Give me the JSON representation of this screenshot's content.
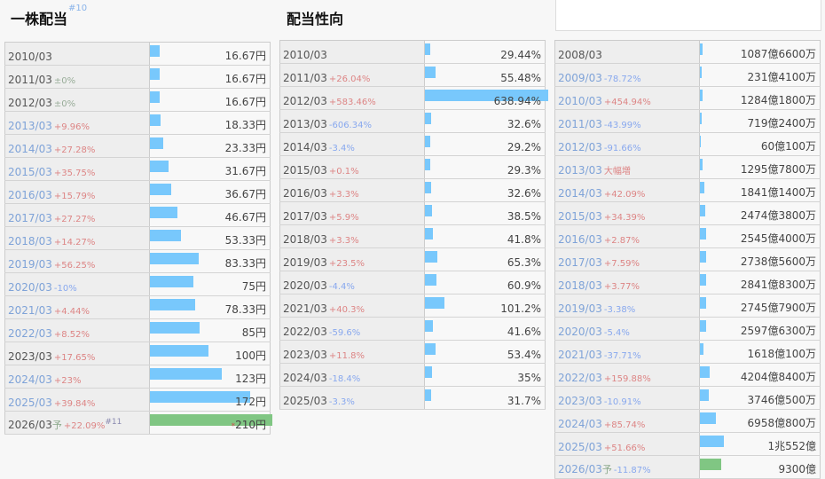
{
  "sections": [
    {
      "title": "一株配当",
      "title_note": "#10",
      "unit_scale_max": 210,
      "rows": [
        {
          "year": "2010/03",
          "change": "",
          "value": "16.67円",
          "num": 16.67
        },
        {
          "year": "2011/03",
          "change": "±0%",
          "value": "16.67円",
          "num": 16.67
        },
        {
          "year": "2012/03",
          "change": "±0%",
          "value": "16.67円",
          "num": 16.67
        },
        {
          "year": "2013/03",
          "change": "+9.96%",
          "value": "18.33円",
          "num": 18.33,
          "link": true
        },
        {
          "year": "2014/03",
          "change": "+27.28%",
          "value": "23.33円",
          "num": 23.33,
          "link": true
        },
        {
          "year": "2015/03",
          "change": "+35.75%",
          "value": "31.67円",
          "num": 31.67,
          "link": true
        },
        {
          "year": "2016/03",
          "change": "+15.79%",
          "value": "36.67円",
          "num": 36.67,
          "link": true
        },
        {
          "year": "2017/03",
          "change": "+27.27%",
          "value": "46.67円",
          "num": 46.67,
          "link": true
        },
        {
          "year": "2018/03",
          "change": "+14.27%",
          "value": "53.33円",
          "num": 53.33,
          "link": true
        },
        {
          "year": "2019/03",
          "change": "+56.25%",
          "value": "83.33円",
          "num": 83.33,
          "link": true
        },
        {
          "year": "2020/03",
          "change": "-10%",
          "value": "75円",
          "num": 75,
          "link": true
        },
        {
          "year": "2021/03",
          "change": "+4.44%",
          "value": "78.33円",
          "num": 78.33,
          "link": true
        },
        {
          "year": "2022/03",
          "change": "+8.52%",
          "value": "85円",
          "num": 85,
          "link": true
        },
        {
          "year": "2023/03",
          "change": "+17.65%",
          "value": "100円",
          "num": 100
        },
        {
          "year": "2024/03",
          "change": "+23%",
          "value": "123円",
          "num": 123,
          "link": true
        },
        {
          "year": "2025/03",
          "change": "+39.84%",
          "value": "172円",
          "num": 172,
          "link": true
        },
        {
          "year": "2026/03",
          "forecast": "予",
          "change": "+22.09%",
          "note": "#11",
          "star": "*",
          "value": "210円",
          "num": 210
        }
      ]
    },
    {
      "title": "配当性向",
      "unit_scale_max": 638.94,
      "rows": [
        {
          "year": "2010/03",
          "change": "",
          "value": "29.44%",
          "num": 29.44
        },
        {
          "year": "2011/03",
          "change": "+26.04%",
          "value": "55.48%",
          "num": 55.48
        },
        {
          "year": "2012/03",
          "change": "+583.46%",
          "value": "638.94%",
          "num": 638.94
        },
        {
          "year": "2013/03",
          "change": "-606.34%",
          "value": "32.6%",
          "num": 32.6
        },
        {
          "year": "2014/03",
          "change": "-3.4%",
          "value": "29.2%",
          "num": 29.2
        },
        {
          "year": "2015/03",
          "change": "+0.1%",
          "value": "29.3%",
          "num": 29.3
        },
        {
          "year": "2016/03",
          "change": "+3.3%",
          "value": "32.6%",
          "num": 32.6
        },
        {
          "year": "2017/03",
          "change": "+5.9%",
          "value": "38.5%",
          "num": 38.5
        },
        {
          "year": "2018/03",
          "change": "+3.3%",
          "value": "41.8%",
          "num": 41.8
        },
        {
          "year": "2019/03",
          "change": "+23.5%",
          "value": "65.3%",
          "num": 65.3
        },
        {
          "year": "2020/03",
          "change": "-4.4%",
          "value": "60.9%",
          "num": 60.9
        },
        {
          "year": "2021/03",
          "change": "+40.3%",
          "value": "101.2%",
          "num": 101.2
        },
        {
          "year": "2022/03",
          "change": "-59.6%",
          "value": "41.6%",
          "num": 41.6
        },
        {
          "year": "2023/03",
          "change": "+11.8%",
          "value": "53.4%",
          "num": 53.4
        },
        {
          "year": "2024/03",
          "change": "-18.4%",
          "value": "35%",
          "num": 35
        },
        {
          "year": "2025/03",
          "change": "-3.3%",
          "value": "31.7%",
          "num": 31.7
        }
      ]
    },
    {
      "title": "",
      "unit_scale_max": 54000,
      "rows": [
        {
          "year": "2008/03",
          "change": "",
          "value": "1087億6600万",
          "num": 1087.66
        },
        {
          "year": "2009/03",
          "change": "-78.72%",
          "value": "231億4100万",
          "num": 231.41,
          "link": true
        },
        {
          "year": "2010/03",
          "change": "+454.94%",
          "value": "1284億1800万",
          "num": 1284.18,
          "link": true
        },
        {
          "year": "2011/03",
          "change": "-43.99%",
          "value": "719億2400万",
          "num": 719.24,
          "link": true
        },
        {
          "year": "2012/03",
          "change": "-91.66%",
          "value": "60億100万",
          "num": 60.01,
          "link": true
        },
        {
          "year": "2013/03",
          "change": "大幅増",
          "value": "1295億7800万",
          "num": 1295.78,
          "link": true
        },
        {
          "year": "2014/03",
          "change": "+42.09%",
          "value": "1841億1400万",
          "num": 1841.14,
          "link": true
        },
        {
          "year": "2015/03",
          "change": "+34.39%",
          "value": "2474億3800万",
          "num": 2474.38,
          "link": true
        },
        {
          "year": "2016/03",
          "change": "+2.87%",
          "value": "2545億4000万",
          "num": 2545.4,
          "link": true
        },
        {
          "year": "2017/03",
          "change": "+7.59%",
          "value": "2738億5600万",
          "num": 2738.56,
          "link": true
        },
        {
          "year": "2018/03",
          "change": "+3.77%",
          "value": "2841億8300万",
          "num": 2841.83,
          "link": true
        },
        {
          "year": "2019/03",
          "change": "-3.38%",
          "value": "2745億7900万",
          "num": 2745.79,
          "link": true
        },
        {
          "year": "2020/03",
          "change": "-5.4%",
          "value": "2597億6300万",
          "num": 2597.63,
          "link": true
        },
        {
          "year": "2021/03",
          "change": "-37.71%",
          "value": "1618億100万",
          "num": 1618.01,
          "link": true
        },
        {
          "year": "2022/03",
          "change": "+159.88%",
          "value": "4204億8400万",
          "num": 4204.84,
          "link": true
        },
        {
          "year": "2023/03",
          "change": "-10.91%",
          "value": "3746億500万",
          "num": 3746.05,
          "link": true
        },
        {
          "year": "2024/03",
          "change": "+85.74%",
          "value": "6958億800万",
          "num": 6958.08,
          "link": true
        },
        {
          "year": "2025/03",
          "change": "+51.66%",
          "value": "1兆552億",
          "num": 10552,
          "link": true
        },
        {
          "year": "2026/03",
          "forecast": "予",
          "change": "-11.87%",
          "value": "9300億",
          "num": 9300,
          "link": true
        }
      ]
    }
  ],
  "colors": {
    "bar": "#78c8fc",
    "forecast_bar": "#80c683",
    "positive": "#dd8585",
    "negative": "#88a8ee"
  }
}
